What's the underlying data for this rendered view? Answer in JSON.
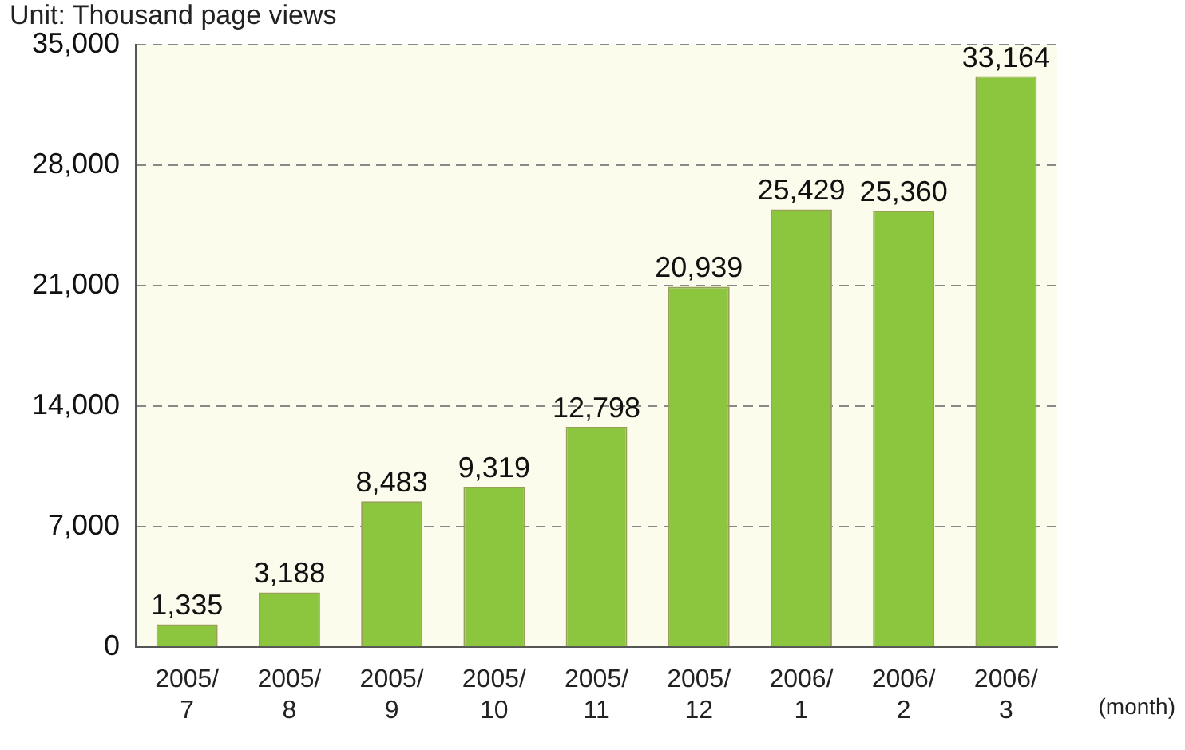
{
  "chart_data": {
    "type": "bar",
    "ylabel": "Unit: Thousand page views",
    "xlabel": "(month)",
    "categories": [
      "2005/7",
      "2005/8",
      "2005/9",
      "2005/10",
      "2005/11",
      "2005/12",
      "2006/1",
      "2006/2",
      "2006/3"
    ],
    "values": [
      1335,
      3188,
      8483,
      9319,
      12798,
      20939,
      25429,
      25360,
      33164
    ],
    "color": "#8cc63f",
    "value_labels": [
      "1,335",
      "3,188",
      "8,483",
      "9,319",
      "12,798",
      "20,939",
      "25,429",
      "25,360",
      "33,164"
    ],
    "ylim": [
      0,
      35000
    ],
    "yticks": [
      0,
      {
        "value": 7000,
        "label": "7,000"
      },
      {
        "value": 14000,
        "label": "14,000"
      },
      {
        "value": 21000,
        "label": "21,000"
      },
      {
        "value": 28000,
        "label": "28,000"
      },
      {
        "value": 35000,
        "label": "35,000"
      }
    ],
    "grid": "y",
    "legend": false
  }
}
